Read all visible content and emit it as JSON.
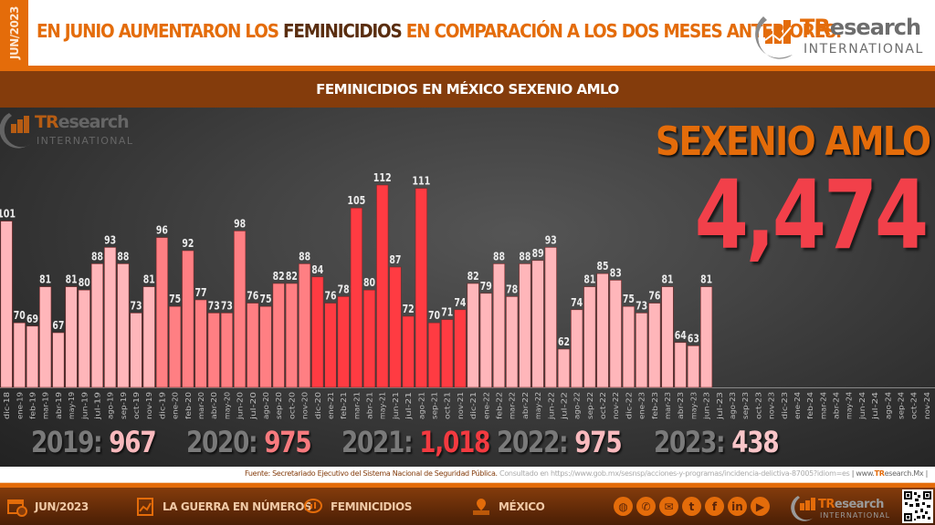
{
  "header": {
    "date_tag": "JUN/2023",
    "headline_part1": "EN JUNIO AUMENTARON LOS ",
    "headline_highlight": "FEMINICIDIOS",
    "headline_part2": " EN COMPARACIÓN A LOS DOS MESES ANTERIORES.",
    "logo_word1": "TR",
    "logo_word2": "esearch",
    "logo_sub": "INTERNATIONAL"
  },
  "subtitle": "FEMINICIDIOS  EN MÉXICO SEXENIO AMLO",
  "summary": {
    "title": "SEXENIO AMLO",
    "total": "4,474"
  },
  "year_totals": [
    {
      "label": "2019:",
      "value": "967",
      "color": "#f9b9bd"
    },
    {
      "label": "2020:",
      "value": "975",
      "color": "#f77a7e"
    },
    {
      "label": "2021:",
      "value": "1,018",
      "color": "#f33a40"
    },
    {
      "label": "2022:",
      "value": "975",
      "color": "#f9b9bd"
    },
    {
      "label": "2023:",
      "value": "438",
      "color": "#f9c5c8"
    }
  ],
  "chart_data": {
    "type": "bar",
    "title": "FEMINICIDIOS  EN MÉXICO SEXENIO AMLO",
    "xlabel": "",
    "ylabel": "",
    "ylim": [
      50,
      118
    ],
    "grid": false,
    "legend": "none",
    "categories": [
      "dic-18",
      "ene-19",
      "feb-19",
      "mar-19",
      "abr-19",
      "may-19",
      "jun-19",
      "jul-19",
      "ago-19",
      "sep-19",
      "oct-19",
      "nov-19",
      "dic-19",
      "ene-20",
      "feb-20",
      "mar-20",
      "abr-20",
      "may-20",
      "jun-20",
      "jul-20",
      "ago-20",
      "sep-20",
      "oct-20",
      "nov-20",
      "dic-20",
      "ene-21",
      "feb-21",
      "mar-21",
      "abr-21",
      "may-21",
      "jun-21",
      "jul-21",
      "ago-21",
      "sep-21",
      "oct-21",
      "nov-21",
      "dic-21",
      "ene-22",
      "feb-22",
      "mar-22",
      "abr-22",
      "may-22",
      "jun-22",
      "jul-22",
      "ago-22",
      "sep-22",
      "oct-22",
      "nov-22",
      "dic-22",
      "ene-23",
      "feb-23",
      "mar-23",
      "abr-23",
      "may-23",
      "jun-23",
      "jul-23",
      "ago-23",
      "sep-23",
      "oct-23",
      "nov-23",
      "dic-23",
      "ene-24",
      "feb-24",
      "mar-24",
      "abr-24",
      "may-24",
      "jun-24",
      "jul-24",
      "ago-24",
      "sep-24",
      "oct-24",
      "nov-24"
    ],
    "values": [
      101,
      70,
      69,
      81,
      67,
      81,
      80,
      88,
      93,
      88,
      73,
      81,
      96,
      75,
      92,
      77,
      73,
      73,
      98,
      76,
      75,
      82,
      82,
      88,
      84,
      76,
      78,
      105,
      80,
      112,
      87,
      72,
      111,
      70,
      71,
      74,
      82,
      79,
      88,
      78,
      88,
      89,
      93,
      62,
      74,
      81,
      85,
      83,
      75,
      73,
      76,
      81,
      64,
      63,
      81,
      null,
      null,
      null,
      null,
      null,
      null,
      null,
      null,
      null,
      null,
      null,
      null,
      null,
      null,
      null,
      null,
      null
    ],
    "series_colors": {
      "2019": "#ffb6ba",
      "2020": "#ff7f83",
      "2021": "#ff3b42",
      "2022": "#ffb6ba",
      "2023": "#ffb6ba"
    }
  },
  "source": {
    "label": "Fuente:",
    "text": "Secretariado Ejecutivo del Sistema Nacional de Seguridad Pública.",
    "consulted": "Consultado  en https://www.gob.mx/sesnsp/acciones-y-programas/incidencia-delictiva-87005?idiom=es",
    "site_prefix": "| www.",
    "site_tr": "TR",
    "site_rest": "esearch.Mx |"
  },
  "footer": {
    "items": [
      {
        "label": "JUN/2023",
        "icon": "calendar-icon"
      },
      {
        "label": "LA GUERRA  EN NÚMEROS",
        "icon": "report-chart-icon"
      },
      {
        "label": "FEMINICIDIOS",
        "icon": "speech-chart-icon"
      },
      {
        "label": "MÉXICO",
        "icon": "map-pin-icon"
      }
    ],
    "social": [
      {
        "icon": "globe-icon",
        "glyph": "◍"
      },
      {
        "icon": "whatsapp-icon",
        "glyph": "✆"
      },
      {
        "icon": "email-icon",
        "glyph": "✉"
      },
      {
        "icon": "twitter-icon",
        "glyph": "t"
      },
      {
        "icon": "facebook-icon",
        "glyph": "f"
      },
      {
        "icon": "linkedin-icon",
        "glyph": "in"
      },
      {
        "icon": "youtube-icon",
        "glyph": "▶"
      }
    ],
    "accent": "#e46c0a",
    "brand_dark": "#843c0c"
  }
}
